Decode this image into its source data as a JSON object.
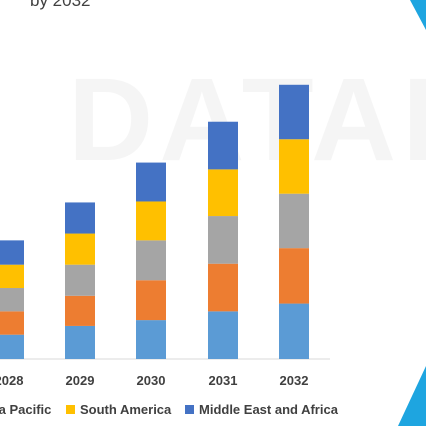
{
  "title_fragment": "by 2032",
  "watermark_text": "DATABR",
  "chart_data": {
    "type": "bar",
    "stacked": true,
    "categories": [
      "2028",
      "2029",
      "2030",
      "2031",
      "2032"
    ],
    "series": [
      {
        "name": "",
        "color": "#5b9bd5",
        "values": [
          25,
          34,
          40,
          49,
          57
        ]
      },
      {
        "name": "",
        "color": "#ed7d31",
        "values": [
          24,
          31,
          41,
          49,
          57
        ]
      },
      {
        "name": "",
        "color": "#a5a5a5",
        "values": [
          24,
          32,
          41,
          49,
          56
        ]
      },
      {
        "name": "South America",
        "color": "#ffc000",
        "values": [
          24,
          32,
          40,
          48,
          56
        ]
      },
      {
        "name": "Middle East and Africa",
        "color": "#4472c4",
        "values": [
          25,
          32,
          40,
          49,
          56
        ]
      }
    ],
    "ylim": [
      0,
      290
    ],
    "grid": false,
    "legend_position": "bottom"
  },
  "legend": [
    {
      "label": "ia Pacific",
      "color": "#a5a5a5"
    },
    {
      "label": "South America",
      "color": "#ffc000"
    },
    {
      "label": "Middle East and Africa",
      "color": "#4472c4"
    }
  ],
  "decor": {
    "accent": "#1ea5e0"
  }
}
